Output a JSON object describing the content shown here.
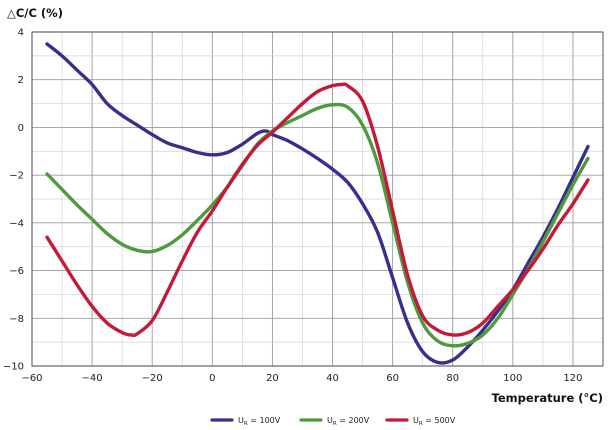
{
  "chart_data": {
    "type": "line",
    "ylabel": "△C/C (%)",
    "xlabel": "Temperature (°C)",
    "xlim": [
      -60,
      130
    ],
    "ylim": [
      -10,
      4
    ],
    "xticks": [
      -60,
      -40,
      -20,
      0,
      20,
      40,
      60,
      80,
      100,
      120
    ],
    "yticks": [
      -10,
      -8,
      -6,
      -4,
      -2,
      0,
      2,
      4
    ],
    "grid": true,
    "legend": "bottom-center",
    "series": [
      {
        "name": "U_R = 100V",
        "legend_main": "U",
        "legend_sub": "R",
        "legend_rest": " = 100V",
        "color": "#3b2d8c",
        "x": [
          -55,
          -50,
          -45,
          -40,
          -35,
          -30,
          -25,
          -20,
          -15,
          -10,
          -5,
          0,
          5,
          10,
          15,
          18,
          20,
          25,
          30,
          35,
          40,
          45,
          50,
          55,
          60,
          65,
          70,
          75,
          80,
          85,
          90,
          95,
          100,
          105,
          110,
          115,
          120,
          125
        ],
        "y": [
          3.5,
          3.0,
          2.4,
          1.8,
          1.0,
          0.5,
          0.1,
          -0.3,
          -0.65,
          -0.85,
          -1.05,
          -1.15,
          -1.05,
          -0.7,
          -0.25,
          -0.15,
          -0.3,
          -0.55,
          -0.9,
          -1.3,
          -1.75,
          -2.3,
          -3.2,
          -4.4,
          -6.3,
          -8.2,
          -9.4,
          -9.85,
          -9.75,
          -9.2,
          -8.5,
          -7.7,
          -6.8,
          -5.7,
          -4.6,
          -3.4,
          -2.1,
          -0.8
        ]
      },
      {
        "name": "U_R = 200V",
        "legend_main": "U",
        "legend_sub": "R",
        "legend_rest": " = 200V",
        "color": "#4e9a3c",
        "x": [
          -55,
          -50,
          -45,
          -40,
          -35,
          -30,
          -25,
          -20,
          -15,
          -10,
          -5,
          0,
          5,
          10,
          15,
          20,
          25,
          30,
          35,
          40,
          45,
          50,
          55,
          60,
          65,
          70,
          75,
          80,
          85,
          90,
          95,
          100,
          105,
          110,
          115,
          120,
          125
        ],
        "y": [
          -1.95,
          -2.6,
          -3.25,
          -3.85,
          -4.45,
          -4.9,
          -5.15,
          -5.2,
          -4.95,
          -4.5,
          -3.9,
          -3.25,
          -2.5,
          -1.6,
          -0.7,
          -0.15,
          0.2,
          0.5,
          0.8,
          0.95,
          0.85,
          0.1,
          -1.5,
          -4.0,
          -6.5,
          -8.2,
          -8.95,
          -9.15,
          -9.05,
          -8.7,
          -8.0,
          -7.0,
          -5.95,
          -4.8,
          -3.6,
          -2.4,
          -1.3
        ]
      },
      {
        "name": "U_R = 500V",
        "legend_main": "U",
        "legend_sub": "R",
        "legend_rest": " = 500V",
        "color": "#c41a3a",
        "x": [
          -55,
          -50,
          -45,
          -40,
          -35,
          -30,
          -27,
          -25,
          -20,
          -15,
          -10,
          -5,
          0,
          5,
          10,
          15,
          20,
          25,
          30,
          35,
          40,
          43,
          45,
          50,
          55,
          60,
          65,
          70,
          75,
          80,
          85,
          90,
          95,
          100,
          105,
          110,
          115,
          120,
          125
        ],
        "y": [
          -4.6,
          -5.6,
          -6.6,
          -7.5,
          -8.2,
          -8.6,
          -8.7,
          -8.65,
          -8.1,
          -6.9,
          -5.6,
          -4.4,
          -3.5,
          -2.5,
          -1.55,
          -0.75,
          -0.2,
          0.4,
          1.0,
          1.5,
          1.75,
          1.8,
          1.75,
          1.1,
          -0.8,
          -3.5,
          -6.2,
          -7.9,
          -8.5,
          -8.7,
          -8.6,
          -8.2,
          -7.5,
          -6.8,
          -6.0,
          -5.1,
          -4.1,
          -3.2,
          -2.2
        ]
      }
    ]
  }
}
